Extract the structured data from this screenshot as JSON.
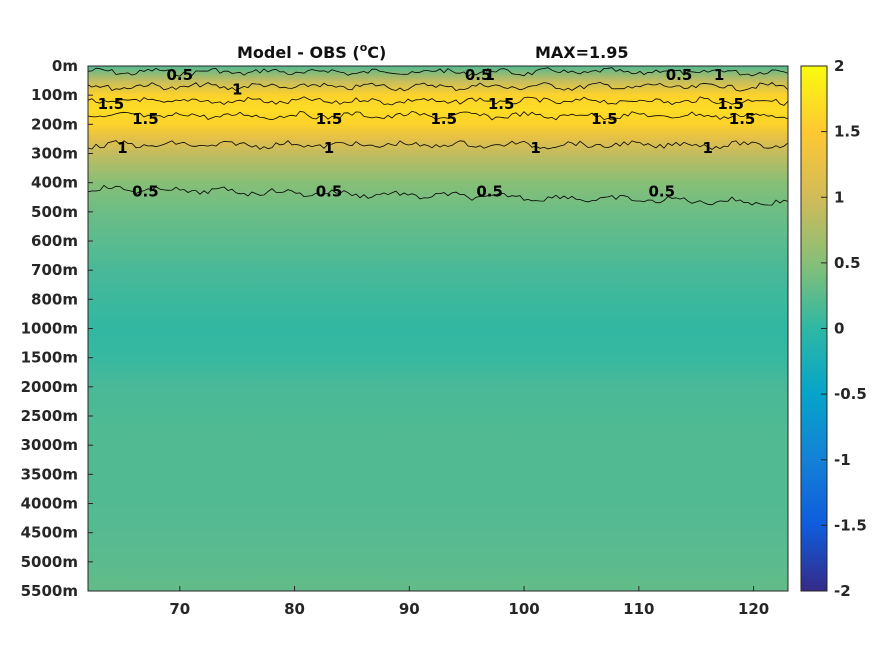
{
  "chart_data": {
    "type": "heatmap",
    "title": {
      "prefix": "Model - OBS (",
      "unit_base": "C",
      "unit_sup": "o",
      "suffix": ")",
      "max_text": "MAX=1.95"
    },
    "xlabel": "",
    "ylabel": "",
    "x_ticks": [
      70,
      80,
      90,
      100,
      110,
      120
    ],
    "x_range": [
      62,
      123
    ],
    "y_tick_labels": [
      "0m",
      "100m",
      "200m",
      "300m",
      "400m",
      "500m",
      "600m",
      "700m",
      "800m",
      "1000m",
      "1500m",
      "2000m",
      "2500m",
      "3000m",
      "3500m",
      "4000m",
      "4500m",
      "5000m",
      "5500m"
    ],
    "y_axis": "depth, categorical levels (top = 0m)",
    "colorbar": {
      "range": [
        -2,
        2
      ],
      "ticks": [
        2,
        1.5,
        1,
        0.5,
        0,
        -0.5,
        -1,
        -1.5,
        -2
      ],
      "tick_labels": [
        "2",
        "1.5",
        "1",
        "0.5",
        "0",
        "-0.5",
        "-1",
        "-1.5",
        "-2"
      ],
      "colormap": "parula",
      "colors": [
        "#352a87",
        "#0f5cdd",
        "#1481d6",
        "#06a4ca",
        "#2eb7a4",
        "#87bf77",
        "#d1bb59",
        "#fec832",
        "#f9fb0e"
      ]
    },
    "profile_by_depth": [
      {
        "depth": "0m",
        "value": 0.2
      },
      {
        "depth": "50m",
        "value": 0.9
      },
      {
        "depth": "100m",
        "value": 1.6
      },
      {
        "depth": "150m",
        "value": 1.7
      },
      {
        "depth": "200m",
        "value": 1.6
      },
      {
        "depth": "250m",
        "value": 1.2
      },
      {
        "depth": "300m",
        "value": 0.9
      },
      {
        "depth": "400m",
        "value": 0.5
      },
      {
        "depth": "500m",
        "value": 0.35
      },
      {
        "depth": "600m",
        "value": 0.25
      },
      {
        "depth": "700m",
        "value": 0.15
      },
      {
        "depth": "800m",
        "value": 0.08
      },
      {
        "depth": "1000m",
        "value": 0.02
      },
      {
        "depth": "1500m",
        "value": 0.05
      },
      {
        "depth": "2000m",
        "value": 0.15
      },
      {
        "depth": "3000m",
        "value": 0.2
      },
      {
        "depth": "4000m",
        "value": 0.2
      },
      {
        "depth": "5000m",
        "value": 0.25
      },
      {
        "depth": "5500m",
        "value": 0.3
      }
    ],
    "contour_levels": [
      0.5,
      1,
      1.5
    ],
    "contour_labels": [
      {
        "text": "0.5",
        "x": 70,
        "depth": "0m"
      },
      {
        "text": "1",
        "x": 75,
        "depth": "50m"
      },
      {
        "text": "1.5",
        "x": 64,
        "depth": "100m"
      },
      {
        "text": "1.5",
        "x": 67,
        "depth": "150m"
      },
      {
        "text": "1.5",
        "x": 83,
        "depth": "150m"
      },
      {
        "text": "1.5",
        "x": 93,
        "depth": "150m"
      },
      {
        "text": "0.5",
        "x": 96,
        "depth": "0m"
      },
      {
        "text": "1",
        "x": 97,
        "depth": "0m"
      },
      {
        "text": "1.5",
        "x": 98,
        "depth": "100m"
      },
      {
        "text": "1.5",
        "x": 107,
        "depth": "150m"
      },
      {
        "text": "0.5",
        "x": 113.5,
        "depth": "0m"
      },
      {
        "text": "1",
        "x": 117,
        "depth": "0m"
      },
      {
        "text": "1.5",
        "x": 118,
        "depth": "100m"
      },
      {
        "text": "1.5",
        "x": 119,
        "depth": "150m"
      },
      {
        "text": "1",
        "x": 65,
        "depth": "250m"
      },
      {
        "text": "1",
        "x": 83,
        "depth": "250m"
      },
      {
        "text": "1",
        "x": 101,
        "depth": "250m"
      },
      {
        "text": "1",
        "x": 116,
        "depth": "250m"
      },
      {
        "text": "0.5",
        "x": 67,
        "depth": "400m"
      },
      {
        "text": "0.5",
        "x": 83,
        "depth": "400m"
      },
      {
        "text": "0.5",
        "x": 97,
        "depth": "400m"
      },
      {
        "text": "0.5",
        "x": 112,
        "depth": "400m"
      }
    ]
  }
}
